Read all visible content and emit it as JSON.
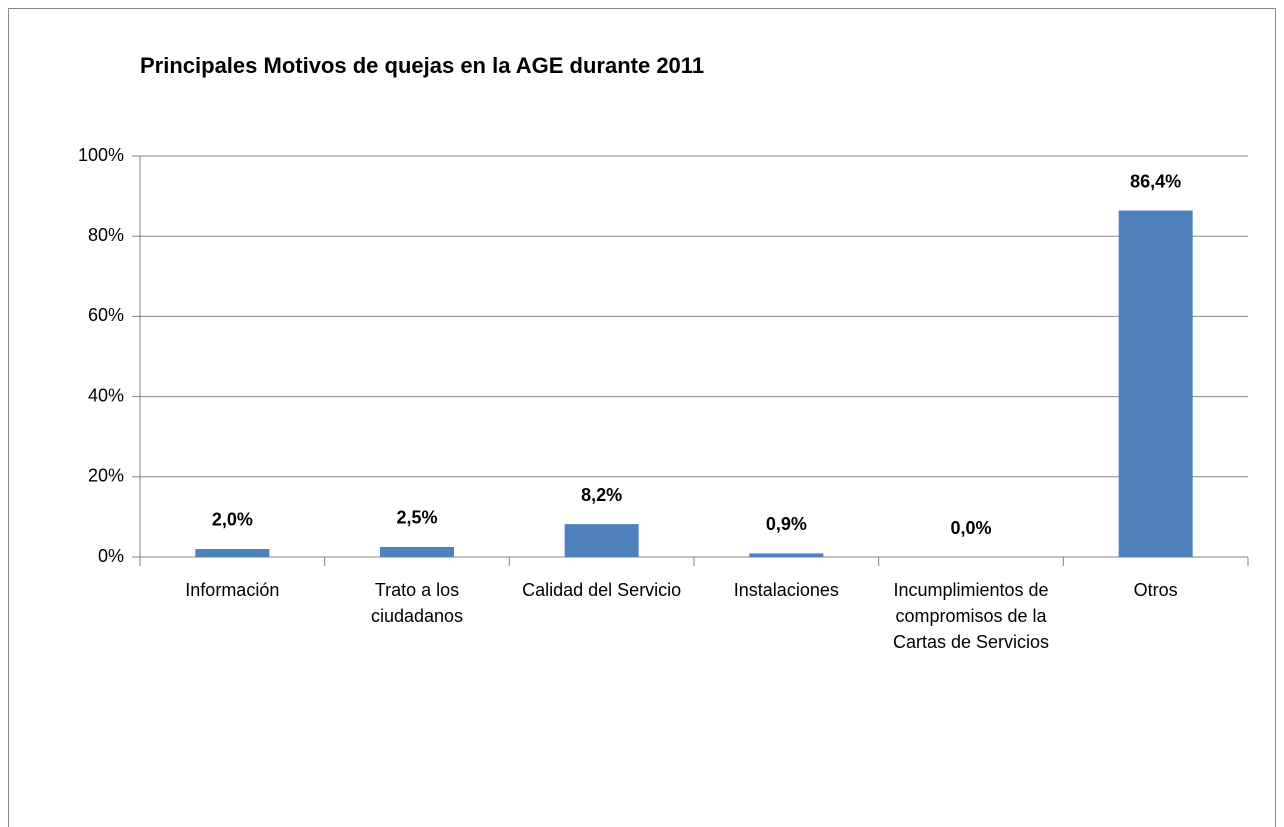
{
  "chart_data": {
    "type": "bar",
    "title": "Principales Motivos de quejas en la AGE durante 2011",
    "categories": [
      "Información",
      "Trato a los ciudadanos",
      "Calidad del Servicio",
      "Instalaciones",
      "Incumplimientos de compromisos de la Cartas de Servicios",
      "Otros"
    ],
    "values": [
      2.0,
      2.5,
      8.2,
      0.9,
      0.0,
      86.4
    ],
    "value_labels": [
      "2,0%",
      "2,5%",
      "8,2%",
      "0,9%",
      "0,0%",
      "86,4%"
    ],
    "color": "#4f81bd",
    "ylim": [
      0,
      100
    ],
    "yticks": [
      {
        "value": 0,
        "label": "0%"
      },
      {
        "value": 20,
        "label": "20%"
      },
      {
        "value": 40,
        "label": "40%"
      },
      {
        "value": 60,
        "label": "60%"
      },
      {
        "value": 80,
        "label": "80%"
      },
      {
        "value": 100,
        "label": "100%"
      }
    ],
    "grid": true
  }
}
